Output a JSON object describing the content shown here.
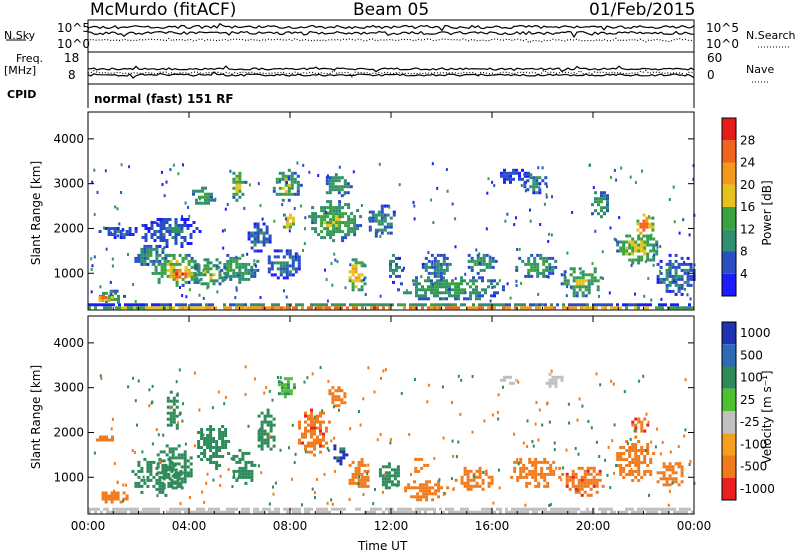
{
  "header": {
    "station": "McMurdo (fitACF)",
    "beam": "Beam 05",
    "date": "01/Feb/2015"
  },
  "top_panels": {
    "nsky_label": "N.Sky",
    "nsky_ticks": [
      "10^5",
      "10^0"
    ],
    "nsearch_label": "N.Search",
    "nsearch_ticks": [
      "10^5",
      "10^0"
    ],
    "freq_label": "Freq.",
    "freq_unit": "[MHz]",
    "freq_ticks": [
      "18",
      "8"
    ],
    "nave_label": "Nave",
    "nave_ticks": [
      "60",
      "0"
    ],
    "cpid_label": "CPID",
    "cpid_value": "normal (fast) 151 RF"
  },
  "chart_data": [
    {
      "type": "heatmap",
      "title": "",
      "xlabel": "Time UT",
      "ylabel": "Slant Range [km]",
      "x_ticks": [
        "00:00",
        "04:00",
        "08:00",
        "12:00",
        "16:00",
        "20:00",
        "00:00"
      ],
      "xlim_hours": [
        0,
        24
      ],
      "y_ticks": [
        1000,
        2000,
        3000,
        4000
      ],
      "ylim": [
        180,
        4600
      ],
      "colorbar": {
        "label": "Power [dB]",
        "ticks": [
          4,
          8,
          12,
          16,
          20,
          24,
          28
        ],
        "range": [
          0,
          30
        ],
        "colors": [
          "#1c1cff",
          "#2a4fc4",
          "#2f8f6e",
          "#3aa340",
          "#e6c21c",
          "#f39a1c",
          "#f0641c",
          "#e61c1c"
        ]
      },
      "regions": [
        {
          "t": [
            0,
            24
          ],
          "r": [
            200,
            330
          ],
          "value": 24
        },
        {
          "t": [
            0.2,
            1.4
          ],
          "r": [
            330,
            650
          ],
          "value": 14
        },
        {
          "t": [
            0.3,
            1.0
          ],
          "r": [
            380,
            560
          ],
          "value": 26
        },
        {
          "t": [
            0.5,
            1.3
          ],
          "r": [
            550,
            700
          ],
          "value": 8
        },
        {
          "t": [
            0.3,
            2.0
          ],
          "r": [
            1800,
            2100
          ],
          "value": 6
        },
        {
          "t": [
            1.6,
            3.2
          ],
          "r": [
            1200,
            1700
          ],
          "value": 10
        },
        {
          "t": [
            2.4,
            4.6
          ],
          "r": [
            700,
            1500
          ],
          "value": 16
        },
        {
          "t": [
            3.1,
            4.1
          ],
          "r": [
            850,
            1150
          ],
          "value": 28
        },
        {
          "t": [
            2.0,
            4.4
          ],
          "r": [
            1600,
            2300
          ],
          "value": 7
        },
        {
          "t": [
            4.1,
            5.5
          ],
          "r": [
            700,
            1400
          ],
          "value": 14
        },
        {
          "t": [
            4.0,
            5.0
          ],
          "r": [
            2500,
            3000
          ],
          "value": 12
        },
        {
          "t": [
            5.0,
            6.8
          ],
          "r": [
            800,
            1500
          ],
          "value": 12
        },
        {
          "t": [
            5.6,
            6.2
          ],
          "r": [
            2600,
            3400
          ],
          "value": 16
        },
        {
          "t": [
            6.2,
            7.2
          ],
          "r": [
            1500,
            2200
          ],
          "value": 8
        },
        {
          "t": [
            7.2,
            8.4
          ],
          "r": [
            2600,
            3400
          ],
          "value": 14
        },
        {
          "t": [
            7.6,
            8.2
          ],
          "r": [
            2000,
            2400
          ],
          "value": 20
        },
        {
          "t": [
            7.0,
            8.4
          ],
          "r": [
            900,
            1600
          ],
          "value": 8
        },
        {
          "t": [
            8.6,
            10.8
          ],
          "r": [
            1700,
            2700
          ],
          "value": 14
        },
        {
          "t": [
            9.3,
            10.4
          ],
          "r": [
            2700,
            3300
          ],
          "value": 12
        },
        {
          "t": [
            10.2,
            11.0
          ],
          "r": [
            600,
            1400
          ],
          "value": 20
        },
        {
          "t": [
            11.0,
            12.2
          ],
          "r": [
            1800,
            2600
          ],
          "value": 10
        },
        {
          "t": [
            11.8,
            12.4
          ],
          "r": [
            800,
            1500
          ],
          "value": 9
        },
        {
          "t": [
            12.0,
            16.5
          ],
          "r": [
            400,
            1000
          ],
          "value": 12
        },
        {
          "t": [
            13.1,
            14.4
          ],
          "r": [
            850,
            1500
          ],
          "value": 9
        },
        {
          "t": [
            14.8,
            16.2
          ],
          "r": [
            1000,
            1500
          ],
          "value": 12
        },
        {
          "t": [
            16.2,
            17.5
          ],
          "r": [
            3000,
            3400
          ],
          "value": 6
        },
        {
          "t": [
            16.8,
            18.6
          ],
          "r": [
            900,
            1500
          ],
          "value": 12
        },
        {
          "t": [
            17.0,
            18.2
          ],
          "r": [
            2800,
            3300
          ],
          "value": 10
        },
        {
          "t": [
            18.6,
            20.5
          ],
          "r": [
            500,
            1200
          ],
          "value": 14
        },
        {
          "t": [
            19.8,
            20.6
          ],
          "r": [
            2200,
            2900
          ],
          "value": 12
        },
        {
          "t": [
            20.8,
            22.6
          ],
          "r": [
            1200,
            2000
          ],
          "value": 16
        },
        {
          "t": [
            21.6,
            22.4
          ],
          "r": [
            1800,
            2400
          ],
          "value": 24
        },
        {
          "t": [
            22.4,
            24.0
          ],
          "r": [
            500,
            1500
          ],
          "value": 8
        }
      ]
    },
    {
      "type": "heatmap",
      "title": "",
      "xlabel": "Time UT",
      "ylabel": "Slant Range [km]",
      "x_ticks": [
        "00:00",
        "04:00",
        "08:00",
        "12:00",
        "16:00",
        "20:00",
        "00:00"
      ],
      "xlim_hours": [
        0,
        24
      ],
      "y_ticks": [
        1000,
        2000,
        3000,
        4000
      ],
      "ylim": [
        180,
        4600
      ],
      "colorbar": {
        "label": "Velocity [m s⁻¹]",
        "ticks": [
          1000,
          500,
          100,
          25,
          -25,
          -100,
          -500,
          -1000
        ],
        "range": [
          -1200,
          1200
        ],
        "colors": [
          "#1e32b4",
          "#2e6ab8",
          "#2f8a5a",
          "#4fc032",
          "#c0c0c0",
          "#f5a01c",
          "#f07a1c",
          "#e82020"
        ]
      },
      "regions": [
        {
          "t": [
            0,
            24
          ],
          "r": [
            200,
            320
          ],
          "value": 10
        },
        {
          "t": [
            0.3,
            1.6
          ],
          "r": [
            450,
            750
          ],
          "value": -300
        },
        {
          "t": [
            0.2,
            1.0
          ],
          "r": [
            1800,
            2000
          ],
          "value": -300
        },
        {
          "t": [
            1.6,
            3.8
          ],
          "r": [
            600,
            1500
          ],
          "value": 200
        },
        {
          "t": [
            2.6,
            4.2
          ],
          "r": [
            700,
            1800
          ],
          "value": 350
        },
        {
          "t": [
            3.0,
            3.6
          ],
          "r": [
            2000,
            3000
          ],
          "value": 200
        },
        {
          "t": [
            4.2,
            5.6
          ],
          "r": [
            1200,
            2300
          ],
          "value": 300
        },
        {
          "t": [
            5.6,
            6.6
          ],
          "r": [
            800,
            1700
          ],
          "value": 250
        },
        {
          "t": [
            6.6,
            7.4
          ],
          "r": [
            1500,
            2600
          ],
          "value": 200
        },
        {
          "t": [
            7.4,
            8.2
          ],
          "r": [
            2800,
            3300
          ],
          "value": 90
        },
        {
          "t": [
            8.2,
            9.6
          ],
          "r": [
            1500,
            2600
          ],
          "value": -400
        },
        {
          "t": [
            9.4,
            10.2
          ],
          "r": [
            2600,
            3100
          ],
          "value": -300
        },
        {
          "t": [
            9.6,
            10.2
          ],
          "r": [
            1300,
            1800
          ],
          "value": 600
        },
        {
          "t": [
            10.2,
            11.2
          ],
          "r": [
            700,
            1500
          ],
          "value": -200
        },
        {
          "t": [
            11.4,
            12.4
          ],
          "r": [
            700,
            1400
          ],
          "value": 300
        },
        {
          "t": [
            12.4,
            14.2
          ],
          "r": [
            500,
            1000
          ],
          "value": -150
        },
        {
          "t": [
            12.8,
            13.4
          ],
          "r": [
            1100,
            1500
          ],
          "value": -300
        },
        {
          "t": [
            14.4,
            16.0
          ],
          "r": [
            700,
            1300
          ],
          "value": -150
        },
        {
          "t": [
            16.2,
            17.0
          ],
          "r": [
            3100,
            3400
          ],
          "value": 10
        },
        {
          "t": [
            16.6,
            18.8
          ],
          "r": [
            800,
            1500
          ],
          "value": -200
        },
        {
          "t": [
            18.0,
            18.8
          ],
          "r": [
            3000,
            3400
          ],
          "value": 10
        },
        {
          "t": [
            18.8,
            20.4
          ],
          "r": [
            600,
            1300
          ],
          "value": -400
        },
        {
          "t": [
            20.8,
            22.4
          ],
          "r": [
            900,
            1900
          ],
          "value": -200
        },
        {
          "t": [
            21.4,
            22.2
          ],
          "r": [
            1900,
            2400
          ],
          "value": -450
        },
        {
          "t": [
            22.4,
            23.6
          ],
          "r": [
            800,
            1400
          ],
          "value": -200
        }
      ]
    }
  ]
}
